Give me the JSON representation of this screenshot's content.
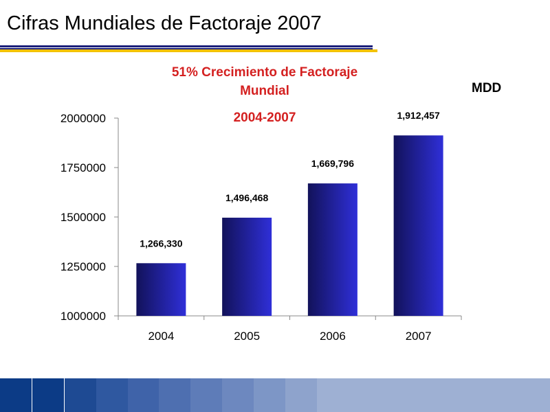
{
  "slide": {
    "title": "Cifras Mundiales de Factoraje 2007"
  },
  "chart_data": {
    "type": "bar",
    "title": "51% Crecimiento de Factoraje Mundial",
    "subtitle": "2004-2007",
    "unit_label": "MDD",
    "categories": [
      "2004",
      "2005",
      "2006",
      "2007"
    ],
    "values": [
      1266330,
      1496468,
      1669796,
      1912457
    ],
    "data_labels": [
      "1,266,330",
      "1,496,468",
      "1,669,796",
      "1,912,457"
    ],
    "ylim": [
      1000000,
      2000000
    ],
    "yticks": [
      1000000,
      1250000,
      1500000,
      1750000,
      2000000
    ],
    "ytick_labels": [
      "1000000",
      "1250000",
      "1500000",
      "1750000",
      "2000000"
    ],
    "xlabel": "",
    "ylabel": "",
    "grid": false,
    "legend": "none",
    "colors": {
      "bar_light": "#2f2fd8",
      "bar_dark": "#12125a",
      "title": "#d42020"
    }
  },
  "footer": {
    "colors": [
      "#0c3b86",
      "#0c3b86",
      "#1e4a93",
      "#2f58a0",
      "#3f63a9",
      "#4e6fb0",
      "#5e7cb8",
      "#6d88bf",
      "#7d96c6",
      "#8ea3cc",
      "#9eb0d3"
    ]
  }
}
